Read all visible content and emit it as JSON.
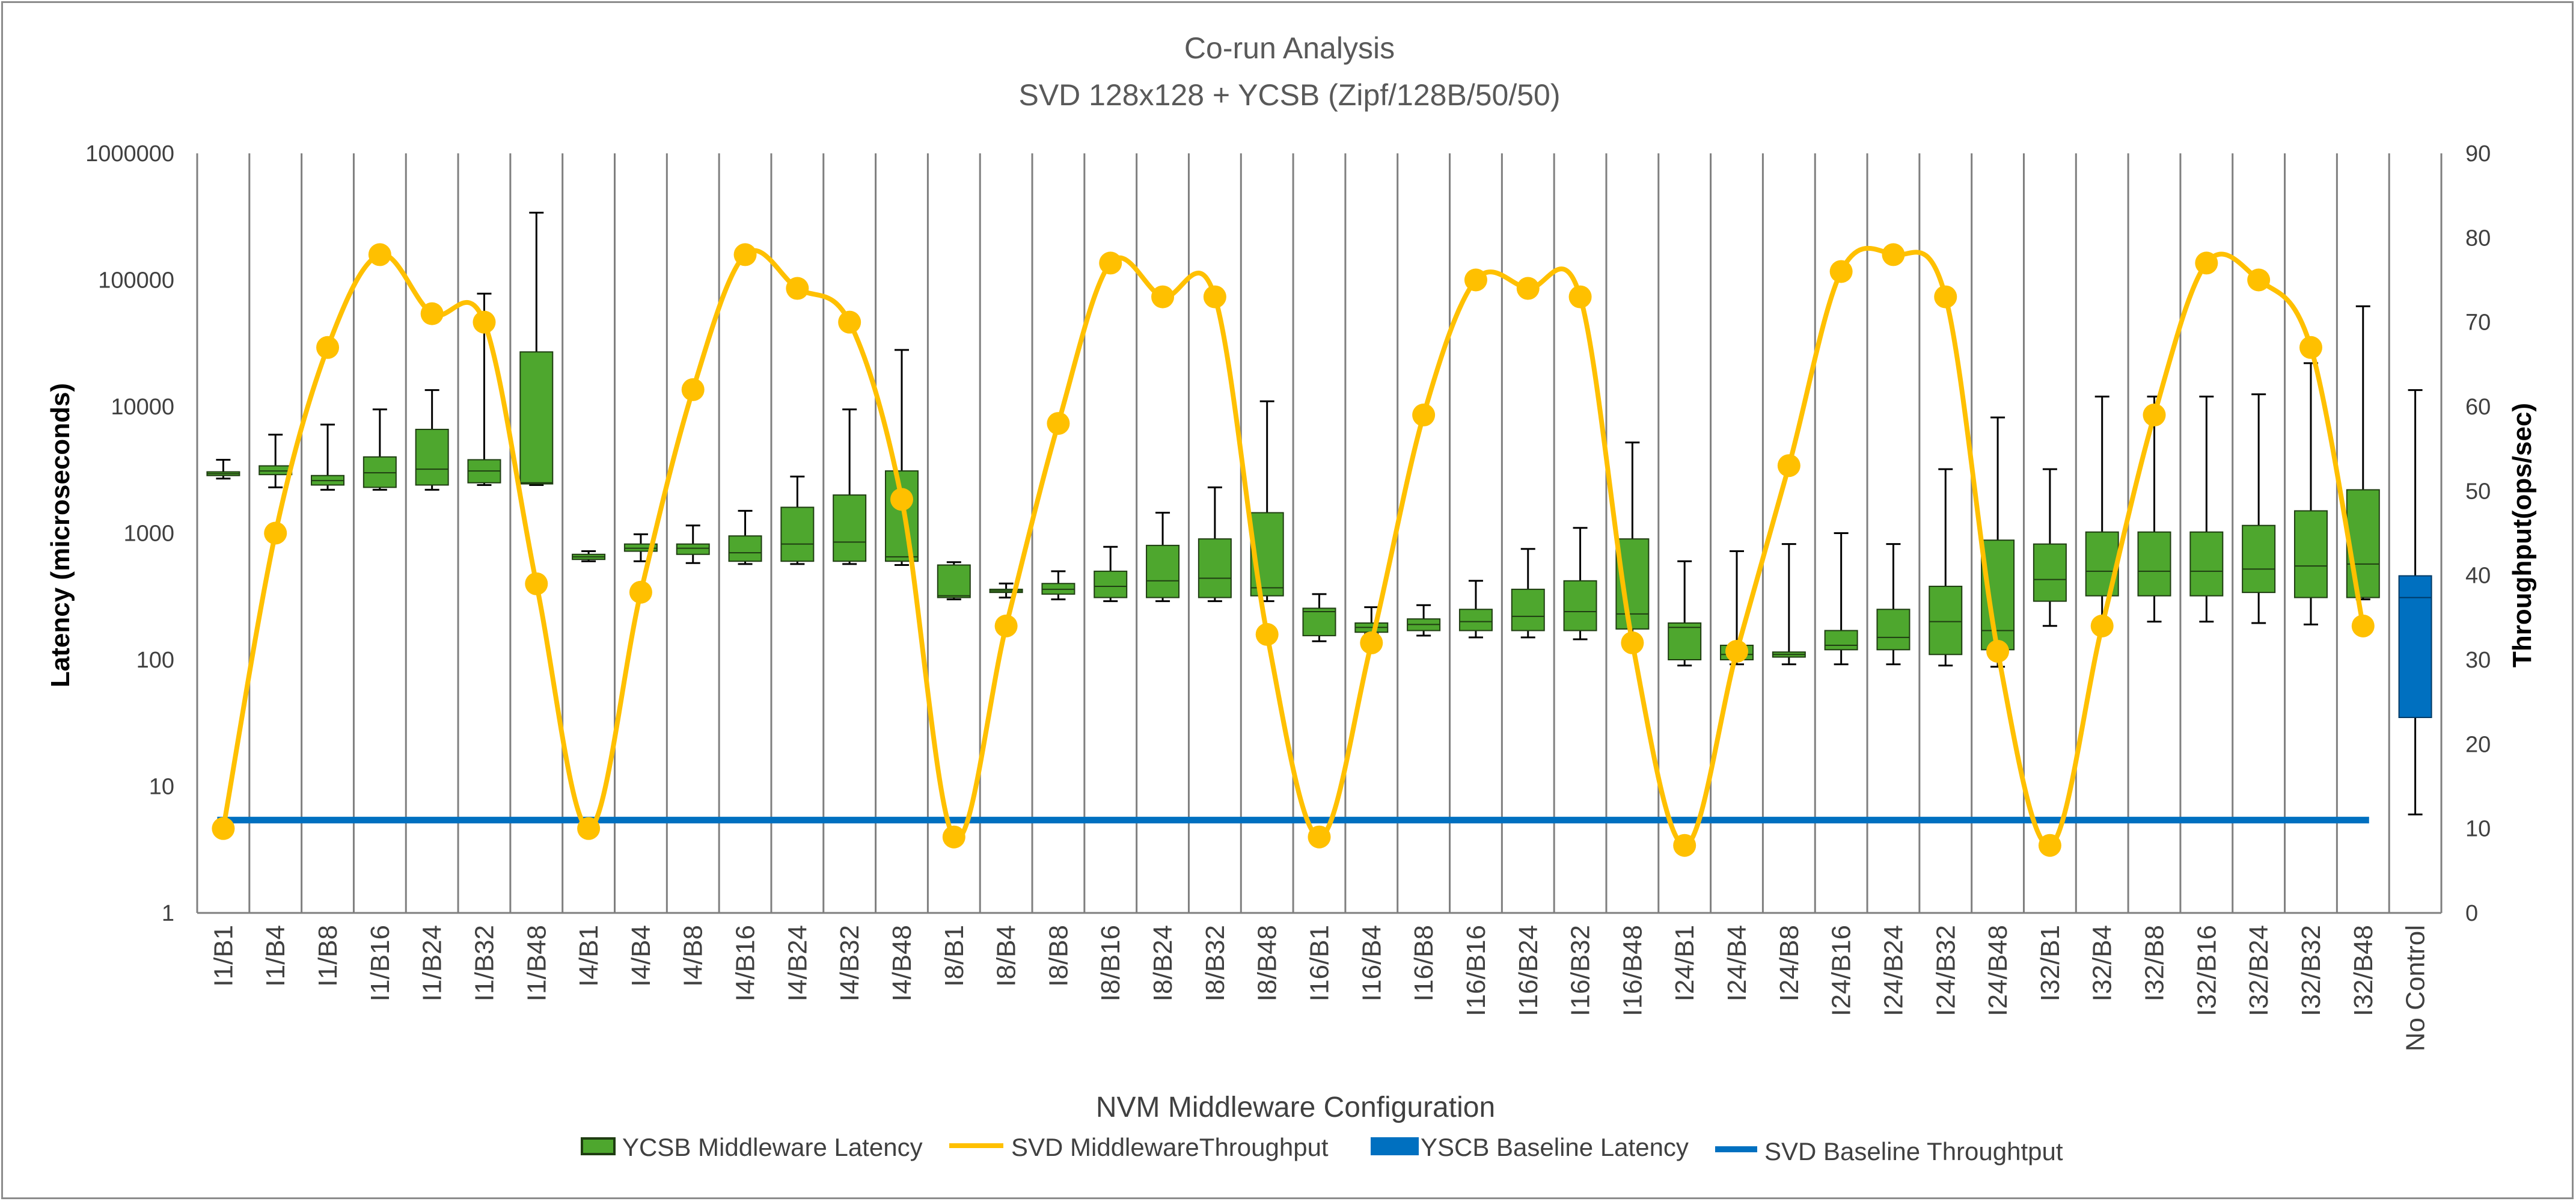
{
  "chart_data": {
    "type": "box+line",
    "title": "Co-run Analysis",
    "subtitle": "SVD 128x128 + YCSB (Zipf/128B/50/50)",
    "xlabel": "NVM Middleware Configuration",
    "ylabel_left": "Latency (microseconds)",
    "ylabel_right": "Throughput(ops/sec)",
    "y_left_scale": "log",
    "y_left_ticks": [
      "1",
      "10",
      "100",
      "1000",
      "10000",
      "100000",
      "1000000"
    ],
    "y_left_range": [
      1,
      1000000
    ],
    "y_right_ticks": [
      "0",
      "10",
      "20",
      "30",
      "40",
      "50",
      "60",
      "70",
      "80",
      "90"
    ],
    "y_right_range": [
      0,
      90
    ],
    "categories": [
      "I1/B1",
      "I1/B4",
      "I1/B8",
      "I1/B16",
      "I1/B24",
      "I1/B32",
      "I1/B48",
      "I4/B1",
      "I4/B4",
      "I4/B8",
      "I4/B16",
      "I4/B24",
      "I4/B32",
      "I4/B48",
      "I8/B1",
      "I8/B4",
      "I8/B8",
      "I8/B16",
      "I8/B24",
      "I8/B32",
      "I8/B48",
      "I16/B1",
      "I16/B4",
      "I16/B8",
      "I16/B16",
      "I16/B24",
      "I16/B32",
      "I16/B48",
      "I24/B1",
      "I24/B4",
      "I24/B8",
      "I24/B16",
      "I24/B24",
      "I24/B32",
      "I24/B48",
      "I32/B1",
      "I32/B4",
      "I32/B8",
      "I32/B16",
      "I32/B24",
      "I32/B32",
      "I32/B48",
      "No Control"
    ],
    "grid": "vertical",
    "legend_position": "bottom",
    "series": [
      {
        "name": "YCSB Middleware Latency",
        "kind": "box",
        "color": "#4ea72e",
        "box_stats": [
          {
            "min": 2700,
            "q1": 2850,
            "median": 2950,
            "q3": 3050,
            "max": 3800
          },
          {
            "min": 2300,
            "q1": 2900,
            "median": 3100,
            "q3": 3400,
            "max": 6000
          },
          {
            "min": 2200,
            "q1": 2400,
            "median": 2600,
            "q3": 2850,
            "max": 7200
          },
          {
            "min": 2200,
            "q1": 2300,
            "median": 3000,
            "q3": 4000,
            "max": 9500
          },
          {
            "min": 2200,
            "q1": 2400,
            "median": 3200,
            "q3": 6600,
            "max": 13500
          },
          {
            "min": 2400,
            "q1": 2500,
            "median": 3100,
            "q3": 3800,
            "max": 78000
          },
          {
            "min": 2400,
            "q1": 2450,
            "median": 2500,
            "q3": 27000,
            "max": 340000
          },
          {
            "min": 600,
            "q1": 620,
            "median": 650,
            "q3": 680,
            "max": 720
          },
          {
            "min": 600,
            "q1": 720,
            "median": 760,
            "q3": 820,
            "max": 980
          },
          {
            "min": 580,
            "q1": 680,
            "median": 760,
            "q3": 820,
            "max": 1150
          },
          {
            "min": 570,
            "q1": 600,
            "median": 700,
            "q3": 950,
            "max": 1500
          },
          {
            "min": 570,
            "q1": 600,
            "median": 820,
            "q3": 1600,
            "max": 2800
          },
          {
            "min": 570,
            "q1": 600,
            "median": 850,
            "q3": 2000,
            "max": 9500
          },
          {
            "min": 560,
            "q1": 600,
            "median": 650,
            "q3": 3100,
            "max": 28000
          },
          {
            "min": 300,
            "q1": 310,
            "median": 320,
            "q3": 560,
            "max": 590
          },
          {
            "min": 310,
            "q1": 340,
            "median": 350,
            "q3": 360,
            "max": 400
          },
          {
            "min": 300,
            "q1": 330,
            "median": 360,
            "q3": 400,
            "max": 500
          },
          {
            "min": 290,
            "q1": 310,
            "median": 380,
            "q3": 500,
            "max": 780
          },
          {
            "min": 290,
            "q1": 310,
            "median": 420,
            "q3": 800,
            "max": 1450
          },
          {
            "min": 290,
            "q1": 310,
            "median": 440,
            "q3": 900,
            "max": 2300
          },
          {
            "min": 290,
            "q1": 320,
            "median": 370,
            "q3": 1450,
            "max": 11000
          },
          {
            "min": 140,
            "q1": 155,
            "median": 240,
            "q3": 255,
            "max": 330
          },
          {
            "min": 160,
            "q1": 165,
            "median": 180,
            "q3": 195,
            "max": 260
          },
          {
            "min": 155,
            "q1": 170,
            "median": 190,
            "q3": 210,
            "max": 270
          },
          {
            "min": 150,
            "q1": 170,
            "median": 200,
            "q3": 250,
            "max": 420
          },
          {
            "min": 150,
            "q1": 170,
            "median": 220,
            "q3": 360,
            "max": 750
          },
          {
            "min": 145,
            "q1": 170,
            "median": 240,
            "q3": 420,
            "max": 1100
          },
          {
            "min": 145,
            "q1": 175,
            "median": 230,
            "q3": 900,
            "max": 5200
          },
          {
            "min": 90,
            "q1": 100,
            "median": 180,
            "q3": 195,
            "max": 600
          },
          {
            "min": 92,
            "q1": 100,
            "median": 110,
            "q3": 130,
            "max": 720
          },
          {
            "min": 92,
            "q1": 105,
            "median": 110,
            "q3": 115,
            "max": 820
          },
          {
            "min": 92,
            "q1": 120,
            "median": 130,
            "q3": 170,
            "max": 1000
          },
          {
            "min": 92,
            "q1": 120,
            "median": 150,
            "q3": 250,
            "max": 820
          },
          {
            "min": 90,
            "q1": 110,
            "median": 200,
            "q3": 380,
            "max": 3200
          },
          {
            "min": 88,
            "q1": 120,
            "median": 170,
            "q3": 880,
            "max": 8200
          },
          {
            "min": 185,
            "q1": 290,
            "median": 430,
            "q3": 820,
            "max": 3200
          },
          {
            "min": 200,
            "q1": 320,
            "median": 500,
            "q3": 1020,
            "max": 12000
          },
          {
            "min": 200,
            "q1": 320,
            "median": 500,
            "q3": 1020,
            "max": 12000
          },
          {
            "min": 200,
            "q1": 320,
            "median": 500,
            "q3": 1020,
            "max": 12000
          },
          {
            "min": 195,
            "q1": 340,
            "median": 520,
            "q3": 1150,
            "max": 12500
          },
          {
            "min": 190,
            "q1": 310,
            "median": 550,
            "q3": 1500,
            "max": 22000
          },
          {
            "min": 300,
            "q1": 310,
            "median": 570,
            "q3": 2200,
            "max": 62000
          },
          null
        ]
      },
      {
        "name": "SVD MiddlewareThroughput",
        "kind": "smooth-line",
        "color": "#ffc000",
        "values": [
          10,
          45,
          67,
          78,
          71,
          70,
          39,
          10,
          38,
          62,
          78,
          74,
          70,
          49,
          9,
          34,
          58,
          77,
          73,
          73,
          33,
          9,
          32,
          59,
          75,
          74,
          73,
          32,
          8,
          31,
          53,
          76,
          78,
          73,
          31,
          8,
          34,
          59,
          77,
          75,
          67,
          34,
          null
        ]
      },
      {
        "name": "YSCB Baseline Latency",
        "kind": "box",
        "color": "#0070c0",
        "box_stats": [
          null,
          null,
          null,
          null,
          null,
          null,
          null,
          null,
          null,
          null,
          null,
          null,
          null,
          null,
          null,
          null,
          null,
          null,
          null,
          null,
          null,
          null,
          null,
          null,
          null,
          null,
          null,
          null,
          null,
          null,
          null,
          null,
          null,
          null,
          null,
          null,
          null,
          null,
          null,
          null,
          null,
          null,
          {
            "min": 6,
            "q1": 35,
            "median": 310,
            "q3": 460,
            "max": 13500
          }
        ]
      },
      {
        "name": "SVD Baseline Throughtput",
        "kind": "line",
        "color": "#0070c0",
        "value": 11
      }
    ]
  }
}
